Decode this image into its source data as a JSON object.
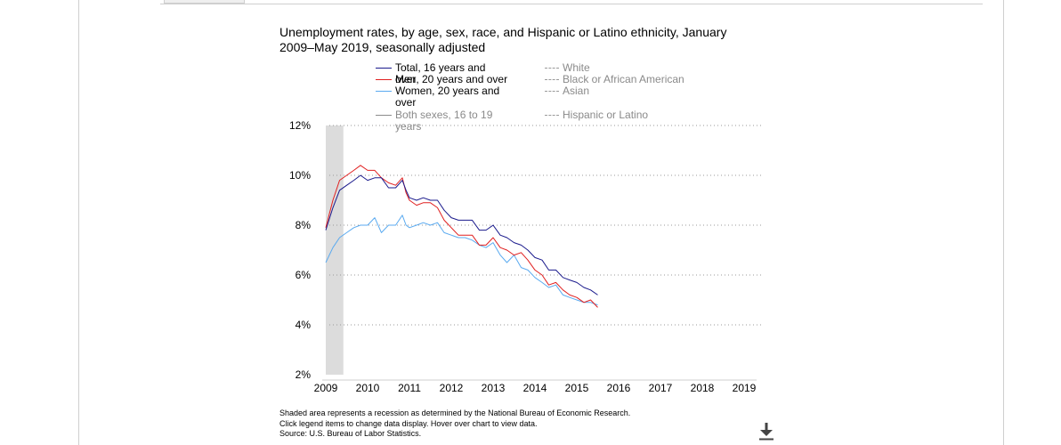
{
  "title": "Unemployment rates, by age, sex, race, and Hispanic or Latino ethnicity, January 2009–May 2019, seasonally adjusted",
  "legend": {
    "left": [
      {
        "label": "Total, 16 years and over",
        "color": "#1a1a8c",
        "style": "solid",
        "active": true
      },
      {
        "label": "Men, 20 years and over",
        "color": "#e02020",
        "style": "solid",
        "active": true
      },
      {
        "label": "Women, 20 years and over",
        "color": "#5aaaf0",
        "style": "solid",
        "active": true
      },
      {
        "label": "Both sexes, 16 to 19 years",
        "color": "#8c8c8c",
        "style": "solid",
        "active": false
      }
    ],
    "right": [
      {
        "label": "White",
        "color": "#9a9a9a",
        "style": "dashed",
        "active": false
      },
      {
        "label": "Black or African American",
        "color": "#9a9a9a",
        "style": "dashed",
        "active": false
      },
      {
        "label": "Asian",
        "color": "#9a9a9a",
        "style": "dashed",
        "active": false
      },
      {
        "label": "Hispanic or Latino",
        "color": "#9a9a9a",
        "style": "dashed",
        "active": false
      }
    ]
  },
  "footnotes": [
    "Shaded area represents a recession as determined by the National Bureau of Economic Research.",
    "Click legend items to change data display. Hover over chart to view data.",
    "Source: U.S. Bureau of Labor Statistics."
  ],
  "icons": {
    "download": "download-icon"
  },
  "chart_data": {
    "type": "line",
    "title": "Unemployment rates, by age, sex, race, and Hispanic or Latino ethnicity, January 2009–May 2019, seasonally adjusted",
    "xlabel": "",
    "ylabel": "",
    "xlim": [
      2009,
      2019
    ],
    "ylim": [
      2,
      12
    ],
    "x_ticks": [
      "2009",
      "2010",
      "2011",
      "2012",
      "2013",
      "2014",
      "2015",
      "2016",
      "2017",
      "2018",
      "2019"
    ],
    "y_ticks": [
      "2%",
      "4%",
      "6%",
      "8%",
      "10%",
      "12%"
    ],
    "y_tick_values": [
      2,
      4,
      6,
      8,
      10,
      12
    ],
    "grid": "horizontal dotted",
    "recession_shading": [
      2009.0,
      2009.42
    ],
    "series": [
      {
        "name": "Total, 16 years and over",
        "color": "#1a1a8c",
        "x": [
          2009.0,
          2009.17,
          2009.33,
          2009.5,
          2009.67,
          2009.83,
          2010.0,
          2010.17,
          2010.33,
          2010.5,
          2010.67,
          2010.83,
          2010.92,
          2011.0,
          2011.17,
          2011.33,
          2011.5,
          2011.67,
          2011.83,
          2012.0,
          2012.17,
          2012.33,
          2012.5,
          2012.67,
          2012.83,
          2013.0,
          2013.17,
          2013.33,
          2013.5,
          2013.67,
          2013.83,
          2014.0,
          2014.17,
          2014.33,
          2014.5,
          2014.67,
          2014.83,
          2015.0,
          2015.17,
          2015.33,
          2015.5
        ],
        "y": [
          7.8,
          8.7,
          9.4,
          9.6,
          9.8,
          10.0,
          9.8,
          9.9,
          9.9,
          9.5,
          9.5,
          9.8,
          9.4,
          9.1,
          9.0,
          9.1,
          9.0,
          9.0,
          8.6,
          8.3,
          8.2,
          8.2,
          8.2,
          7.8,
          7.8,
          8.0,
          7.6,
          7.5,
          7.3,
          7.2,
          7.0,
          6.7,
          6.6,
          6.2,
          6.2,
          5.9,
          5.8,
          5.7,
          5.5,
          5.4,
          5.2
        ]
      },
      {
        "name": "Men, 20 years and over",
        "color": "#e02020",
        "x": [
          2009.0,
          2009.17,
          2009.33,
          2009.5,
          2009.67,
          2009.83,
          2010.0,
          2010.17,
          2010.33,
          2010.5,
          2010.67,
          2010.83,
          2010.92,
          2011.0,
          2011.17,
          2011.33,
          2011.5,
          2011.67,
          2011.83,
          2012.0,
          2012.17,
          2012.33,
          2012.5,
          2012.67,
          2012.83,
          2013.0,
          2013.17,
          2013.33,
          2013.5,
          2013.67,
          2013.83,
          2014.0,
          2014.17,
          2014.33,
          2014.5,
          2014.67,
          2014.83,
          2015.0,
          2015.17,
          2015.33,
          2015.5
        ],
        "y": [
          7.9,
          9.0,
          9.8,
          10.0,
          10.2,
          10.4,
          10.2,
          10.2,
          9.9,
          9.7,
          9.6,
          9.9,
          9.3,
          9.0,
          8.8,
          8.9,
          8.9,
          8.7,
          8.2,
          7.9,
          7.6,
          7.6,
          7.6,
          7.2,
          7.2,
          7.5,
          7.1,
          7.0,
          6.8,
          6.9,
          6.6,
          6.2,
          6.0,
          5.6,
          5.7,
          5.4,
          5.2,
          5.1,
          4.9,
          5.0,
          4.7
        ]
      },
      {
        "name": "Women, 20 years and over",
        "color": "#5aaaf0",
        "x": [
          2009.0,
          2009.17,
          2009.33,
          2009.5,
          2009.67,
          2009.83,
          2010.0,
          2010.17,
          2010.33,
          2010.5,
          2010.67,
          2010.83,
          2010.92,
          2011.0,
          2011.17,
          2011.33,
          2011.5,
          2011.67,
          2011.83,
          2012.0,
          2012.17,
          2012.33,
          2012.5,
          2012.67,
          2012.83,
          2013.0,
          2013.17,
          2013.33,
          2013.5,
          2013.67,
          2013.83,
          2014.0,
          2014.17,
          2014.33,
          2014.5,
          2014.67,
          2014.83,
          2015.0,
          2015.17,
          2015.33,
          2015.5
        ],
        "y": [
          6.5,
          7.1,
          7.5,
          7.7,
          7.9,
          8.0,
          8.0,
          8.3,
          7.7,
          8.0,
          8.0,
          8.4,
          8.0,
          7.9,
          8.0,
          8.1,
          8.0,
          8.1,
          7.7,
          7.6,
          7.5,
          7.5,
          7.4,
          7.2,
          7.1,
          7.3,
          6.8,
          6.5,
          6.8,
          6.3,
          6.2,
          5.9,
          5.7,
          5.5,
          5.6,
          5.2,
          5.1,
          5.0,
          4.9,
          4.9,
          4.8
        ]
      }
    ]
  }
}
